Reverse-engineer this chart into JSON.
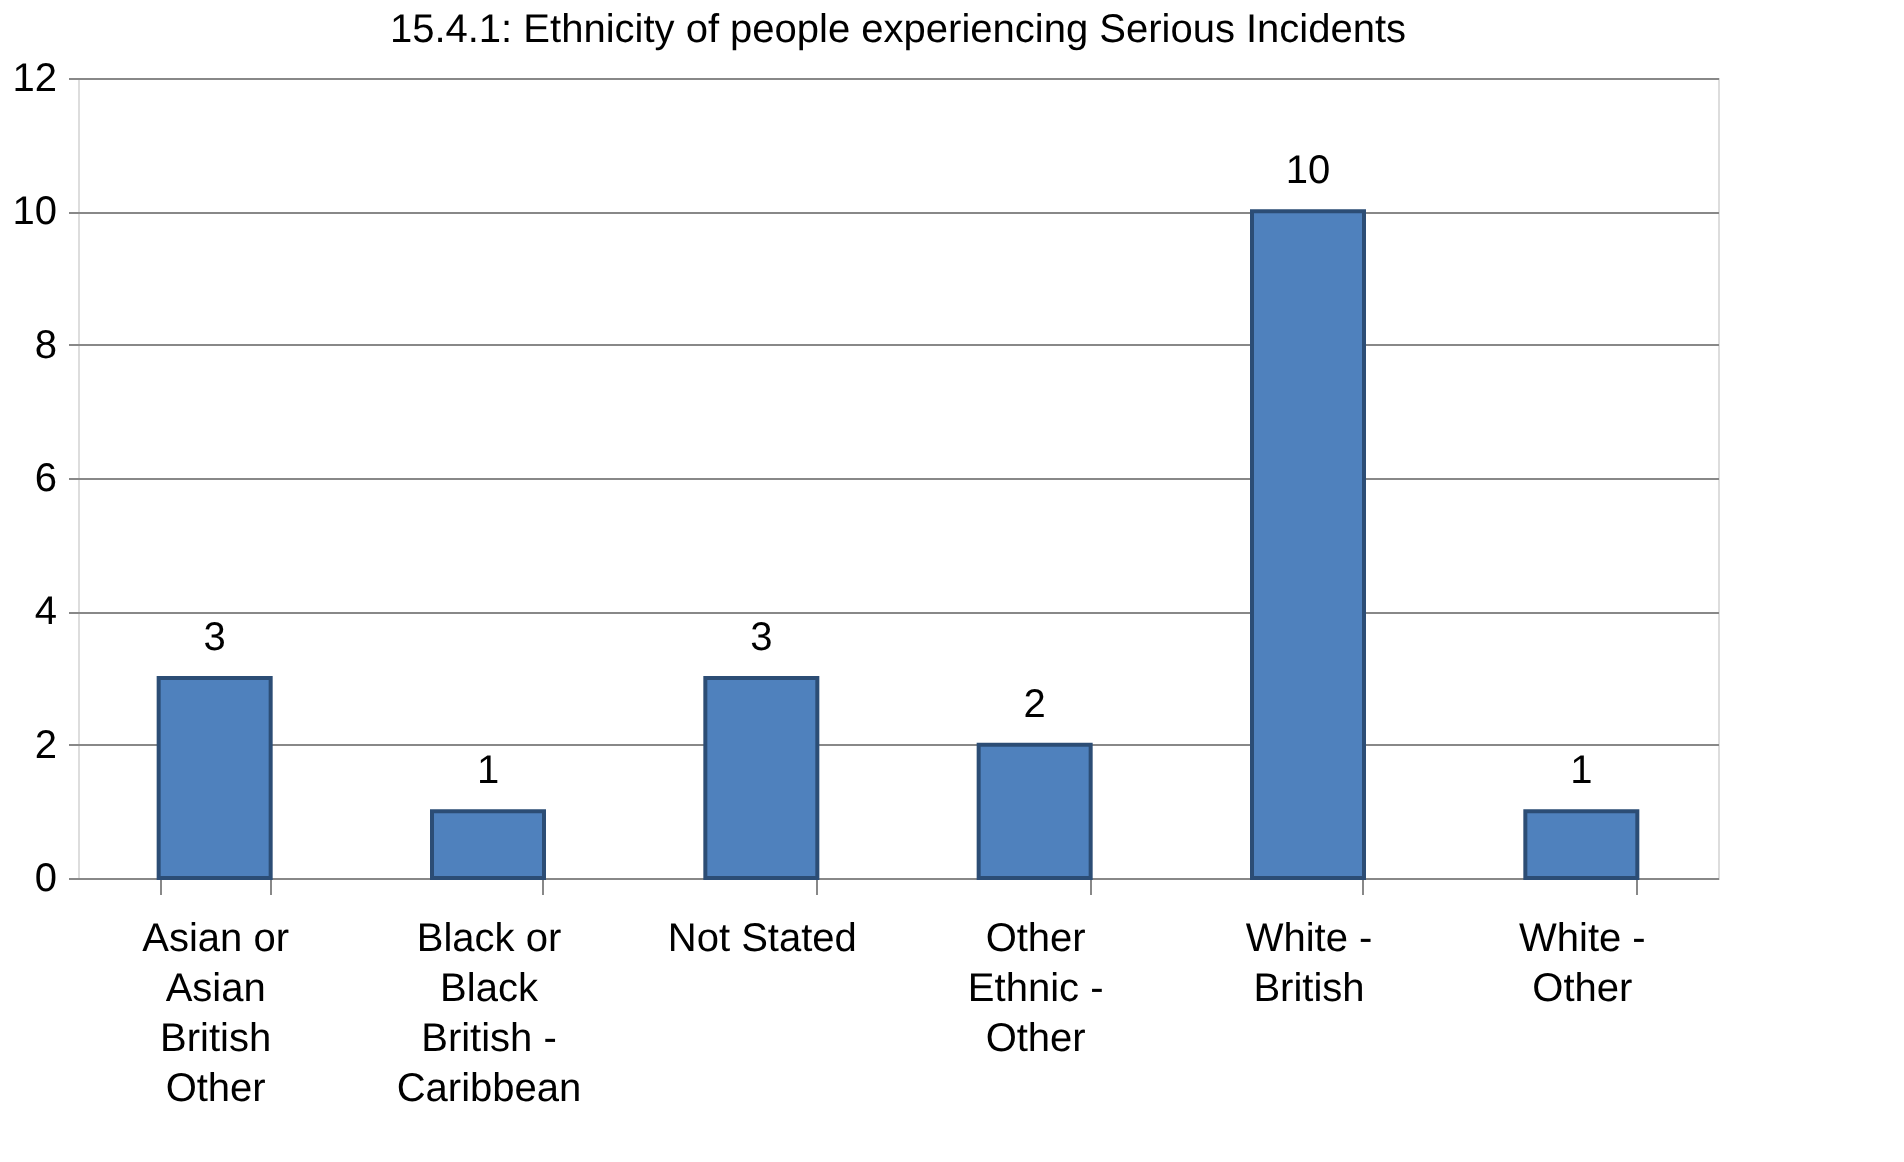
{
  "chart_data": {
    "type": "bar",
    "title": "15.4.1: Ethnicity of people experiencing Serious Incidents",
    "categories": [
      "Asian or Asian British Other",
      "Black or Black British - Caribbean",
      "Not Stated",
      "Other Ethnic - Other",
      "White - British",
      "White - Other"
    ],
    "values": [
      3,
      1,
      3,
      2,
      10,
      1
    ],
    "color": "#4f81bd",
    "ylim": [
      0,
      12
    ],
    "yticks": [
      0,
      2,
      4,
      6,
      8,
      10,
      12
    ],
    "grid": "y",
    "data_labels": true
  }
}
